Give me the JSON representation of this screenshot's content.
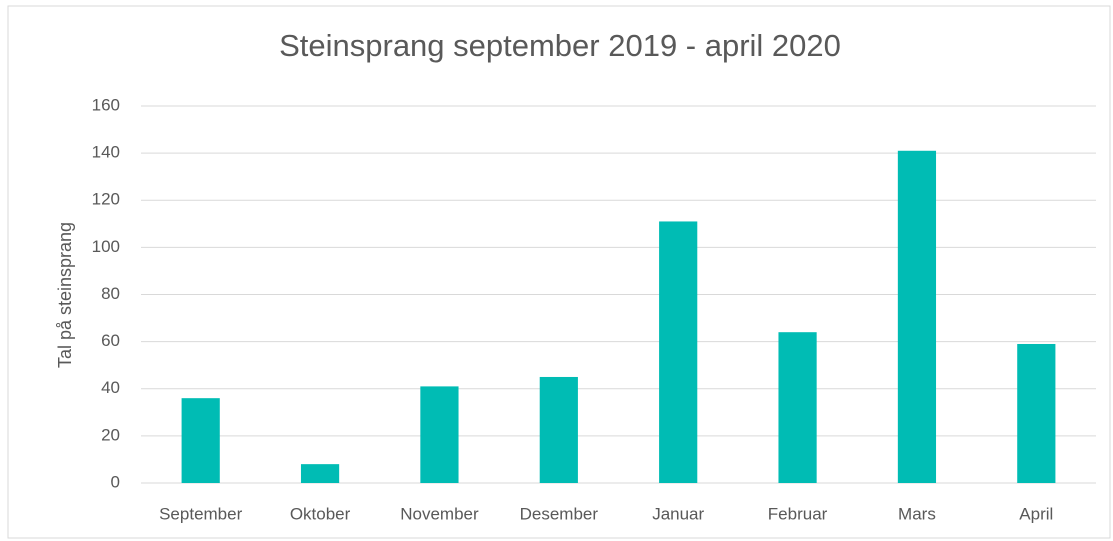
{
  "chart_data": {
    "type": "bar",
    "title": "Steinsprang september 2019 - april 2020",
    "y_label": "Tal på steinsprang",
    "categories": [
      "September",
      "Oktober",
      "November",
      "Desember",
      "Januar",
      "Februar",
      "Mars",
      "April"
    ],
    "values": [
      36,
      8,
      41,
      45,
      111,
      64,
      141,
      59
    ],
    "color": "#00bcb4",
    "ylim": [
      0,
      160
    ],
    "yticks": [
      0,
      20,
      40,
      60,
      80,
      100,
      120,
      140,
      160
    ],
    "grid": true
  }
}
